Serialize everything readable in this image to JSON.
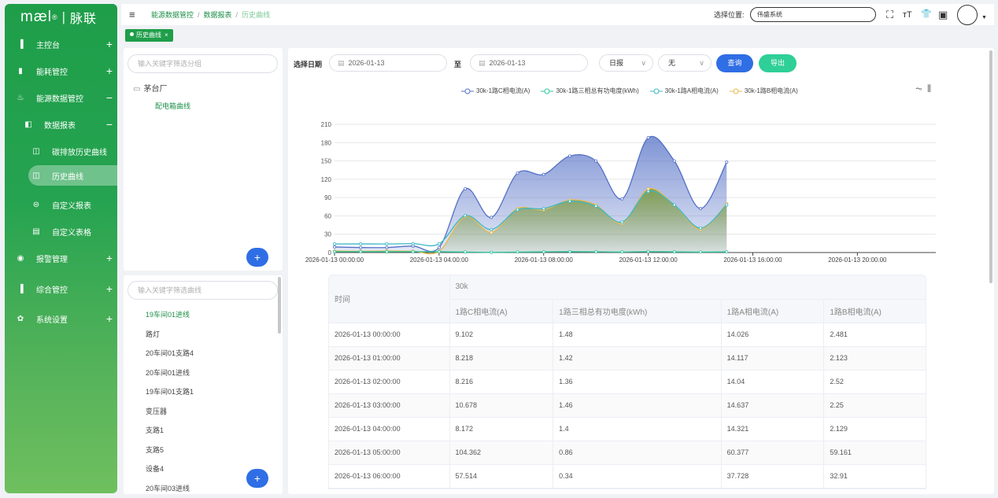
{
  "brand": {
    "logo_text": "mæl",
    "logo_reg": "®",
    "logo_sep": "|",
    "logo_cn": "脉联"
  },
  "sidebar": {
    "items": [
      {
        "label": "主控台",
        "icon": "bar-chart-icon",
        "glyph": "▐",
        "sign": "+",
        "level": 1
      },
      {
        "label": "能耗管控",
        "icon": "book-icon",
        "glyph": "▮",
        "sign": "+",
        "level": 1
      },
      {
        "label": "能源数据管控",
        "icon": "bowl-icon",
        "glyph": "♨",
        "sign": "−",
        "level": 1
      },
      {
        "label": "数据报表",
        "icon": "report-icon",
        "glyph": "◧",
        "sign": "−",
        "level": 2
      },
      {
        "label": "碳排放历史曲线",
        "icon": "book-open-icon",
        "glyph": "◫",
        "sign": "",
        "level": 3
      },
      {
        "label": "历史曲线",
        "icon": "book-open-icon",
        "glyph": "◫",
        "sign": "",
        "level": 3,
        "active": true
      },
      {
        "label": "自定义报表",
        "icon": "custom-report-icon",
        "glyph": "⊜",
        "sign": "",
        "level": 3
      },
      {
        "label": "自定义表格",
        "icon": "document-icon",
        "glyph": "▤",
        "sign": "",
        "level": 3
      },
      {
        "label": "报警管理",
        "icon": "alarm-icon",
        "glyph": "◉",
        "sign": "+",
        "level": 1
      },
      {
        "label": "综合管控",
        "icon": "bar-chart-icon",
        "glyph": "▐",
        "sign": "+",
        "level": 1
      },
      {
        "label": "系统设置",
        "icon": "gear-icon",
        "glyph": "✿",
        "sign": "+",
        "level": 1
      }
    ]
  },
  "topbar": {
    "menu_icon": "≡",
    "breadcrumb": [
      "能源数据管控",
      "数据报表",
      "历史曲线"
    ],
    "breadcrumb_sep": "/",
    "location_label": "选择位置:",
    "location_value": "伟盛系统",
    "icons": [
      {
        "name": "fullscreen-icon",
        "glyph": "⛶"
      },
      {
        "name": "font-size-icon",
        "glyph": "тТ"
      },
      {
        "name": "shirt-icon",
        "glyph": "👕"
      },
      {
        "name": "save-icon",
        "glyph": "▣"
      }
    ],
    "caret": "▼"
  },
  "tags": [
    {
      "label": "历史曲线",
      "close": "×"
    }
  ],
  "group_panel": {
    "search_placeholder": "输入关键字筛选分组",
    "root_icon": "▭",
    "root": "茅台厂",
    "child": "配电箱曲线",
    "add": "+"
  },
  "curve_panel": {
    "search_placeholder": "输入关键字筛选曲线",
    "items": [
      "19车间01进线",
      "路灯",
      "20车间01支路4",
      "20车间01进线",
      "19车间01支路1",
      "变压器",
      "支路1",
      "支路5",
      "设备4",
      "20车间03进线"
    ],
    "selected_index": 0,
    "add": "+"
  },
  "filters": {
    "date_label": "选择日期",
    "start_date": "2026-01-13",
    "to_label": "至",
    "end_date": "2026-01-13",
    "cal_icon": "▤",
    "report_type": "日报",
    "compare": "无",
    "arrow": "∨",
    "query_label": "查询",
    "export_label": "导出"
  },
  "chart_tools": {
    "line": "⏦",
    "bar": "⫼"
  },
  "chart_data": {
    "type": "area",
    "x": [
      "2026-01-13 00:00:00",
      "2026-01-13 01:00:00",
      "2026-01-13 02:00:00",
      "2026-01-13 03:00:00",
      "2026-01-13 04:00:00",
      "2026-01-13 05:00:00",
      "2026-01-13 06:00:00",
      "2026-01-13 07:00:00",
      "2026-01-13 08:00:00",
      "2026-01-13 09:00:00",
      "2026-01-13 10:00:00",
      "2026-01-13 11:00:00",
      "2026-01-13 12:00:00",
      "2026-01-13 13:00:00",
      "2026-01-13 14:00:00",
      "2026-01-13 15:00:00"
    ],
    "x_ticks": [
      "2026-01-13 00:00:00",
      "2026-01-13 04:00:00",
      "2026-01-13 08:00:00",
      "2026-01-13 12:00:00",
      "2026-01-13 16:00:00",
      "2026-01-13 20:00:00"
    ],
    "x_range_hours": [
      0,
      23
    ],
    "ylim": [
      0,
      210
    ],
    "y_ticks": [
      0,
      30,
      60,
      90,
      120,
      150,
      180,
      210
    ],
    "legend_position": "top",
    "grid": true,
    "series": [
      {
        "name": "30k-1路C相电流(A)",
        "color": "#5470c6",
        "fill": true,
        "values": [
          9.102,
          8.218,
          8.216,
          10.678,
          8.172,
          104.362,
          57.514,
          130,
          128,
          158,
          150,
          88,
          188,
          150,
          72,
          148
        ]
      },
      {
        "name": "30k-1路三相总有功电度(kWh)",
        "color": "#2ec7a0",
        "fill": false,
        "values": [
          1.48,
          1.42,
          1.36,
          1.46,
          1.4,
          0.86,
          0.34,
          0.8,
          1.2,
          1.5,
          1.3,
          0.9,
          1.6,
          1.2,
          0.8,
          1.1
        ]
      },
      {
        "name": "30k-1路A相电流(A)",
        "color": "#3bb8c4",
        "fill": false,
        "values": [
          14.026,
          14.117,
          14.04,
          14.637,
          14.321,
          60.377,
          37.728,
          70,
          72,
          84,
          76,
          50,
          100,
          78,
          40,
          78
        ]
      },
      {
        "name": "30k-1路B相电流(A)",
        "color": "#e8b84a",
        "fill": true,
        "values": [
          2.481,
          2.123,
          2.52,
          2.25,
          2.129,
          59.161,
          32.91,
          72,
          70,
          86,
          78,
          48,
          104,
          78,
          38,
          80
        ]
      }
    ]
  },
  "table": {
    "time_header": "时间",
    "group_header": "30k",
    "columns": [
      "1路C相电流(A)",
      "1路三相总有功电度(kWh)",
      "1路A相电流(A)",
      "1路B相电流(A)"
    ],
    "rows": [
      [
        "2026-01-13 00:00:00",
        "9.102",
        "1.48",
        "14.026",
        "2.481"
      ],
      [
        "2026-01-13 01:00:00",
        "8.218",
        "1.42",
        "14.117",
        "2.123"
      ],
      [
        "2026-01-13 02:00:00",
        "8.216",
        "1.36",
        "14.04",
        "2.52"
      ],
      [
        "2026-01-13 03:00:00",
        "10.678",
        "1.46",
        "14.637",
        "2.25"
      ],
      [
        "2026-01-13 04:00:00",
        "8.172",
        "1.4",
        "14.321",
        "2.129"
      ],
      [
        "2026-01-13 05:00:00",
        "104.362",
        "0.86",
        "60.377",
        "59.161"
      ],
      [
        "2026-01-13 06:00:00",
        "57.514",
        "0.34",
        "37.728",
        "32.91"
      ]
    ]
  }
}
